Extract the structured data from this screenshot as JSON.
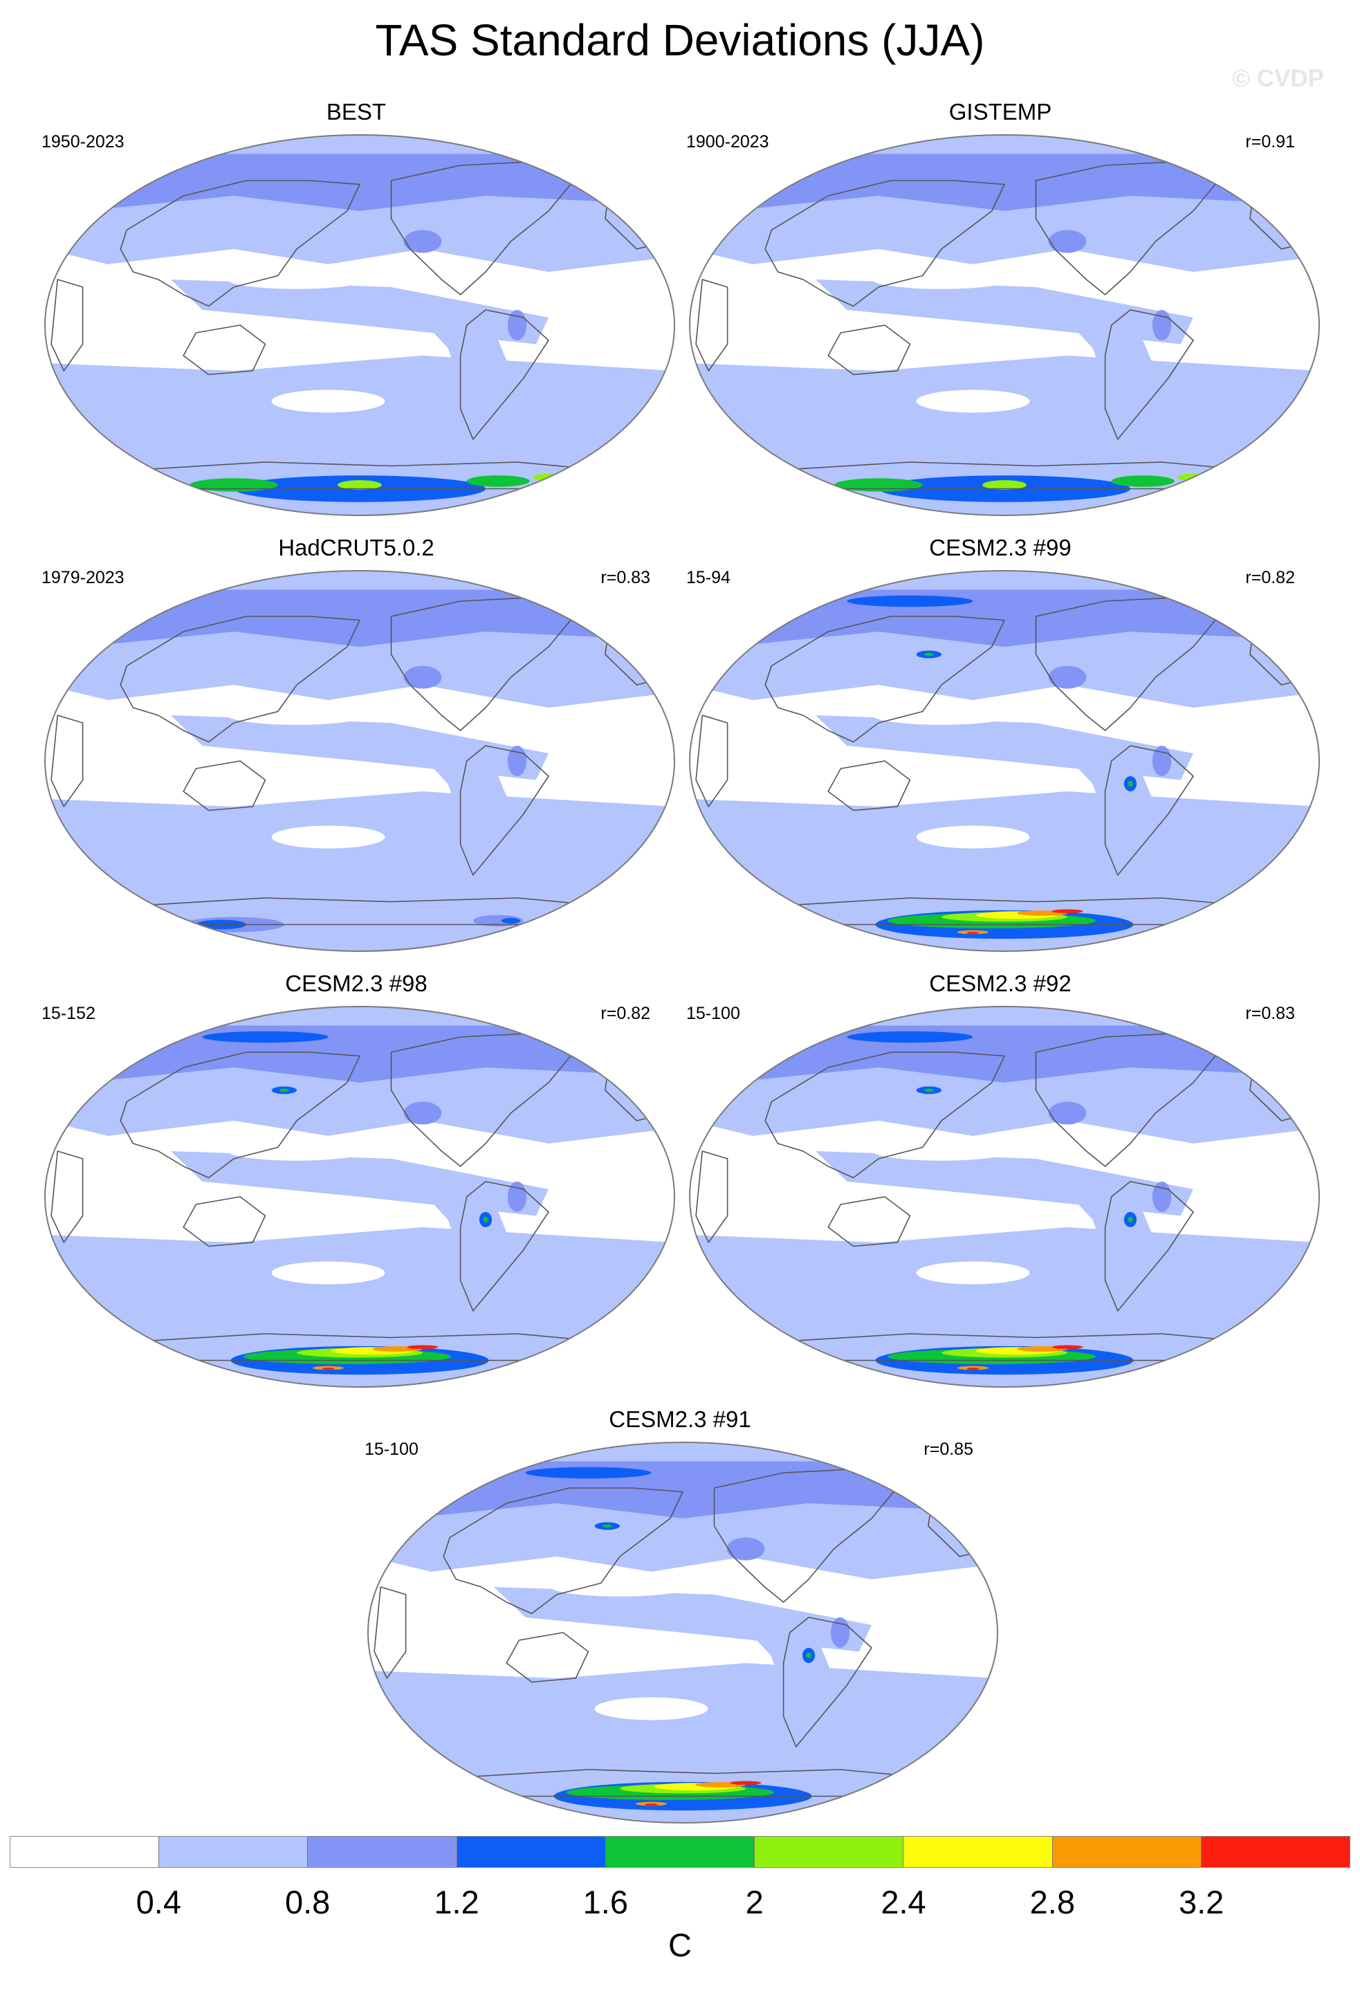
{
  "title": "TAS Standard Deviations (JJA)",
  "watermark": "© CVDP",
  "colors": {
    "white": "#ffffff",
    "lightblue": "#b4c4fc",
    "medblue": "#8294f6",
    "blue": "#0d5ef7",
    "green": "#0cc435",
    "lightgreen": "#8ff20c",
    "yellow": "#fcfc08",
    "orange": "#fc9a04",
    "red": "#fb1e10",
    "coast": "#555555",
    "frame": "#7a7a7a"
  },
  "panels": [
    {
      "name": "BEST",
      "left": "1950-2023",
      "right": "",
      "ant": "mid"
    },
    {
      "name": "GISTEMP",
      "left": "1900-2023",
      "right": "r=0.91",
      "ant": "mid"
    },
    {
      "name": "HadCRUT5.0.2",
      "left": "1979-2023",
      "right": "r=0.83",
      "ant": "low"
    },
    {
      "name": "CESM2.3 #99",
      "left": "15-94",
      "right": "r=0.82",
      "ant": "high"
    },
    {
      "name": "CESM2.3 #98",
      "left": "15-152",
      "right": "r=0.82",
      "ant": "high"
    },
    {
      "name": "CESM2.3 #92",
      "left": "15-100",
      "right": "r=0.83",
      "ant": "high"
    },
    {
      "name": "CESM2.3 #91",
      "left": "15-100",
      "right": "r=0.85",
      "ant": "high"
    }
  ],
  "legend": {
    "units": "C",
    "labels": [
      "0.4",
      "0.8",
      "1.2",
      "1.6",
      "2",
      "2.4",
      "2.8",
      "3.2"
    ],
    "colors": [
      "#ffffff",
      "#b4c4fc",
      "#8294f6",
      "#0d5ef7",
      "#0cc435",
      "#8ff20c",
      "#fcfc08",
      "#fc9a04",
      "#fb1e10"
    ]
  }
}
